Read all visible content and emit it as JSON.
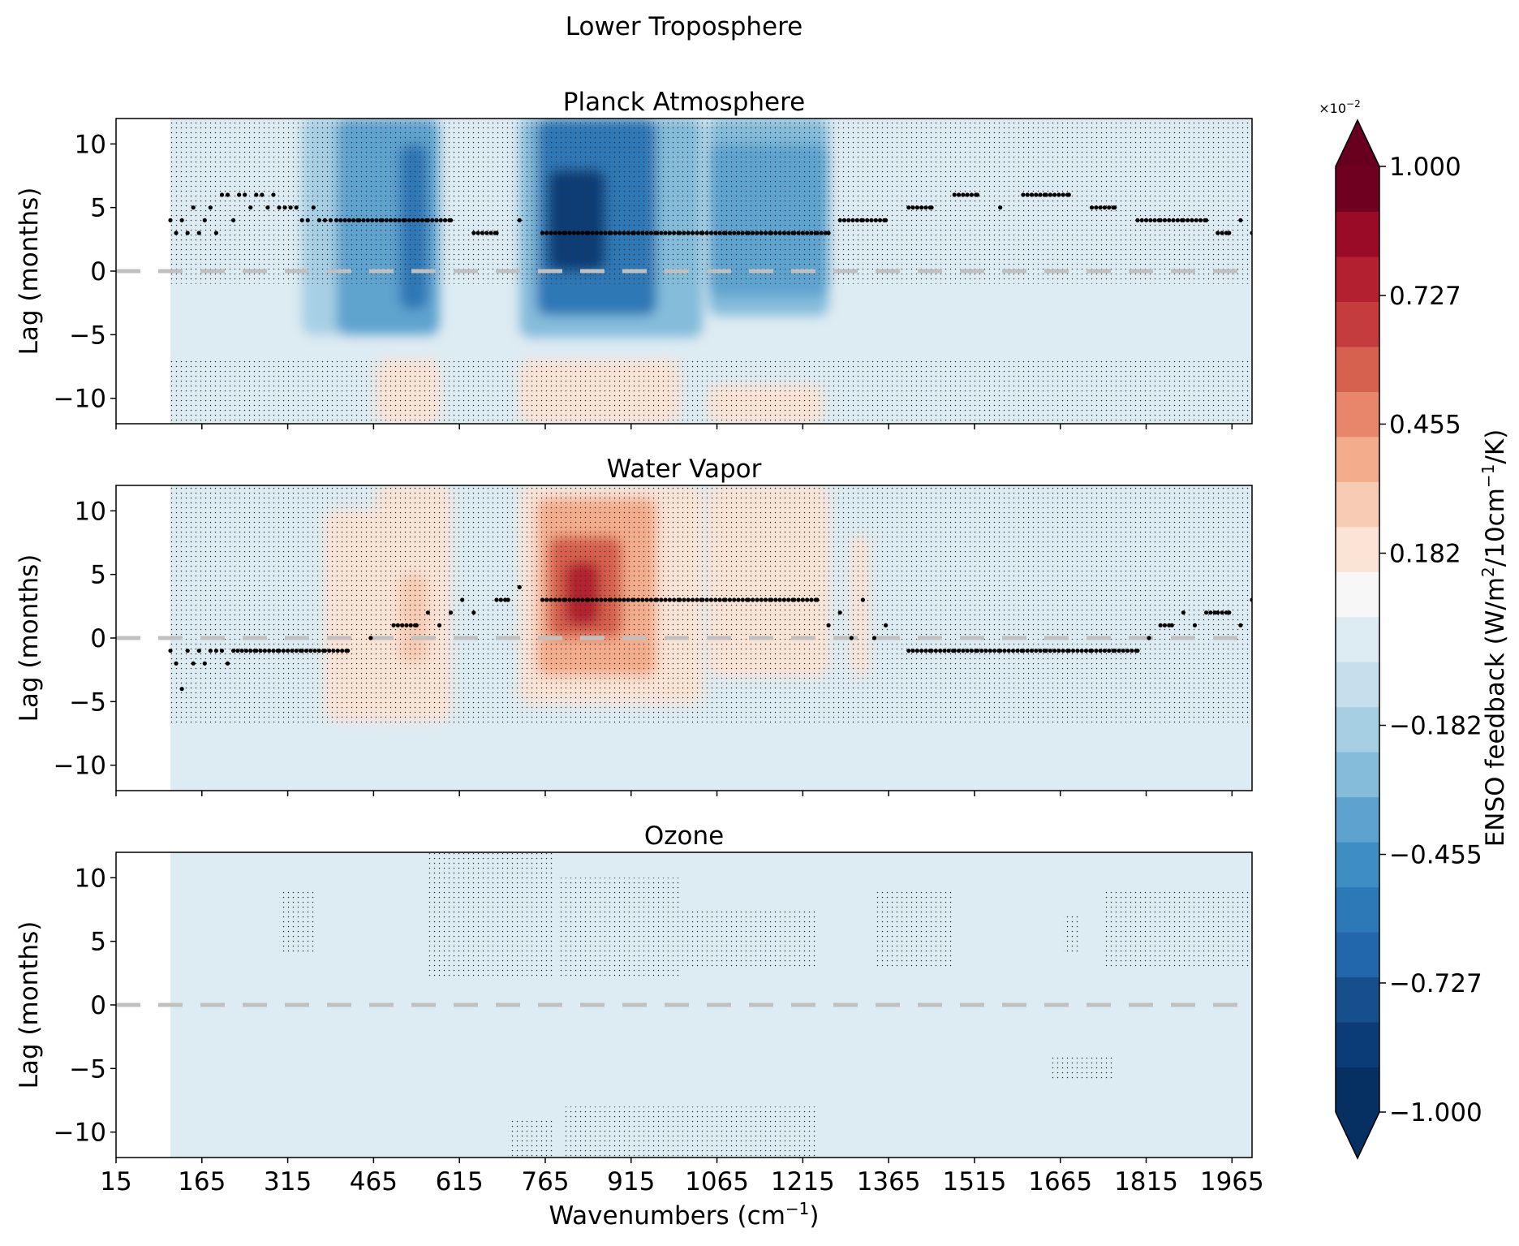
{
  "figure": {
    "suptitle": "Lower Troposphere",
    "xlabel_main": "Wavenumbers (cm",
    "xlabel_sup": "−1",
    "xlabel_end": ")",
    "ylabel": "Lag (months)"
  },
  "colorbar": {
    "label_main": "ENSO feedback (W/m",
    "label_sup1": "2",
    "label_mid": "/10cm",
    "label_sup2": "−1",
    "label_end": "/K)",
    "offset_base": "×10",
    "offset_exp": "−2",
    "ticks": [
      "1.000",
      "0.727",
      "0.455",
      "0.182",
      "−0.182",
      "−0.455",
      "−0.727",
      "−1.000"
    ],
    "tick_values": [
      1.0,
      0.727,
      0.455,
      0.182,
      -0.182,
      -0.455,
      -0.727,
      -1.0
    ],
    "colors": [
      "#053061",
      "#0c3c77",
      "#164f8b",
      "#2266ac",
      "#2d78b6",
      "#3e8ec3",
      "#5ea3cf",
      "#84bcda",
      "#a7cfe4",
      "#c6dfed",
      "#ddebf2",
      "#f7f7f7",
      "#fbe3d6",
      "#f8cbb4",
      "#f4ad8c",
      "#e7866a",
      "#d6614e",
      "#c43c3c",
      "#b3202f",
      "#990b27",
      "#6f0020"
    ],
    "under_color": "#053061",
    "over_color": "#67001f"
  },
  "chart_data": [
    {
      "type": "heatmap",
      "title": "Planck Atmosphere",
      "xlim": [
        15,
        2000
      ],
      "ylim": [
        -12,
        12
      ],
      "xticks": [
        15,
        165,
        315,
        465,
        615,
        765,
        915,
        1065,
        1215,
        1365,
        1515,
        1665,
        1815,
        1965
      ],
      "yticks": [
        10,
        5,
        0,
        -5,
        -10
      ],
      "ytick_labels": [
        "10",
        "5",
        "0",
        "−5",
        "−10"
      ],
      "zero_line": 0,
      "data_start_x": 110,
      "features": [
        {
          "x": [
            340,
            420
          ],
          "y": [
            -5,
            12
          ],
          "value": -0.2
        },
        {
          "x": [
            400,
            580
          ],
          "y": [
            -5,
            12
          ],
          "value": -0.35
        },
        {
          "x": [
            510,
            560
          ],
          "y": [
            -3,
            10
          ],
          "value": -0.6
        },
        {
          "x": [
            720,
            1040
          ],
          "y": [
            -5.2,
            12
          ],
          "value": -0.3
        },
        {
          "x": [
            750,
            960
          ],
          "y": [
            -3.5,
            12
          ],
          "value": -0.55
        },
        {
          "x": [
            770,
            870
          ],
          "y": [
            0,
            8
          ],
          "value": -0.85
        },
        {
          "x": [
            1050,
            1260
          ],
          "y": [
            -3.5,
            12
          ],
          "value": -0.3
        },
        {
          "x": [
            1050,
            1260
          ],
          "y": [
            -2,
            10
          ],
          "value": -0.4
        },
        {
          "x": [
            470,
            580
          ],
          "y": [
            -12,
            -7
          ],
          "value": 0.15
        },
        {
          "x": [
            720,
            1000
          ],
          "y": [
            -12,
            -7
          ],
          "value": 0.15
        },
        {
          "x": [
            750,
            950
          ],
          "y": [
            -12,
            -8.5
          ],
          "value": 0.22
        },
        {
          "x": [
            1050,
            1250
          ],
          "y": [
            -12,
            -9
          ],
          "value": 0.15
        }
      ],
      "significance": {
        "x_range": [
          110,
          2000
        ],
        "full_regions": [
          {
            "y": [
              -1,
              12
            ]
          }
        ],
        "tail_regions": [
          {
            "x": [
              110,
              2000
            ],
            "y": [
              -12,
              -7
            ]
          }
        ]
      },
      "lag_of_max": {
        "x": [
          110,
          120,
          130,
          140,
          150,
          160,
          170,
          180,
          190,
          200,
          210,
          220,
          230,
          240,
          250,
          260,
          270,
          280,
          290,
          300,
          310,
          320,
          330,
          340,
          350,
          360,
          370,
          380,
          390,
          400,
          440,
          480,
          520,
          560,
          600,
          640,
          680,
          720,
          760,
          800,
          840,
          880,
          920,
          960,
          1000,
          1040,
          1080,
          1120,
          1160,
          1200,
          1240,
          1260,
          1280,
          1320,
          1360,
          1400,
          1440,
          1480,
          1520,
          1560,
          1600,
          1640,
          1680,
          1720,
          1760,
          1800,
          1840,
          1880,
          1920,
          1940,
          1960,
          1980,
          2000
        ],
        "y": [
          4,
          3,
          4,
          3,
          5,
          3,
          4,
          5,
          3,
          6,
          6,
          4,
          6,
          6,
          5,
          6,
          6,
          5,
          6,
          5,
          5,
          5,
          5,
          4,
          4,
          5,
          4,
          4,
          4,
          4,
          4,
          4,
          4,
          4,
          4,
          3,
          3,
          4,
          3,
          3,
          3,
          3,
          3,
          3,
          3,
          3,
          3,
          3,
          3,
          3,
          3,
          3,
          4,
          4,
          4,
          5,
          5,
          6,
          6,
          5,
          6,
          6,
          6,
          5,
          5,
          4,
          4,
          4,
          4,
          3,
          3,
          4,
          3
        ]
      }
    },
    {
      "type": "heatmap",
      "title": "Water Vapor",
      "xlim": [
        15,
        2000
      ],
      "ylim": [
        -12,
        12
      ],
      "xticks": [
        15,
        165,
        315,
        465,
        615,
        765,
        915,
        1065,
        1215,
        1365,
        1515,
        1665,
        1815,
        1965
      ],
      "yticks": [
        10,
        5,
        0,
        -5,
        -10
      ],
      "ytick_labels": [
        "10",
        "5",
        "0",
        "−5",
        "−10"
      ],
      "zero_line": 0,
      "data_start_x": 110,
      "features": [
        {
          "x": [
            380,
            600
          ],
          "y": [
            -6.5,
            10
          ],
          "value": 0.15
        },
        {
          "x": [
            470,
            600
          ],
          "y": [
            -6.5,
            12
          ],
          "value": 0.2
        },
        {
          "x": [
            510,
            560
          ],
          "y": [
            -2,
            5
          ],
          "value": 0.3
        },
        {
          "x": [
            720,
            1040
          ],
          "y": [
            -5.2,
            12
          ],
          "value": 0.22
        },
        {
          "x": [
            750,
            960
          ],
          "y": [
            -3,
            11
          ],
          "value": 0.4
        },
        {
          "x": [
            770,
            900
          ],
          "y": [
            0,
            8
          ],
          "value": 0.6
        },
        {
          "x": [
            800,
            860
          ],
          "y": [
            1,
            6
          ],
          "value": 0.75
        },
        {
          "x": [
            1050,
            1260
          ],
          "y": [
            -3,
            12
          ],
          "value": 0.2
        },
        {
          "x": [
            1300,
            1330
          ],
          "y": [
            -3,
            8
          ],
          "value": 0.15
        }
      ],
      "significance": {
        "x_range": [
          110,
          2000
        ],
        "full_regions": [
          {
            "y": [
              -6.8,
              12
            ]
          }
        ],
        "tail_regions": []
      },
      "lag_of_max": {
        "x": [
          110,
          120,
          130,
          140,
          150,
          160,
          170,
          180,
          190,
          200,
          210,
          220,
          260,
          300,
          340,
          380,
          420,
          460,
          500,
          540,
          560,
          580,
          600,
          620,
          640,
          680,
          700,
          720,
          760,
          800,
          840,
          880,
          920,
          960,
          1000,
          1040,
          1080,
          1120,
          1160,
          1200,
          1240,
          1260,
          1280,
          1300,
          1320,
          1340,
          1360,
          1400,
          1440,
          1480,
          1520,
          1560,
          1600,
          1640,
          1680,
          1720,
          1760,
          1800,
          1820,
          1840,
          1860,
          1880,
          1900,
          1920,
          1940,
          1960,
          1980,
          2000
        ],
        "y": [
          -1,
          -2,
          -4,
          -1,
          -2,
          -1,
          -2,
          -1,
          -1,
          -1,
          -2,
          -1,
          -1,
          -1,
          -1,
          -1,
          -1,
          0,
          1,
          1,
          2,
          1,
          2,
          3,
          2,
          3,
          3,
          4,
          3,
          3,
          3,
          3,
          3,
          3,
          3,
          3,
          3,
          3,
          3,
          3,
          3,
          1,
          2,
          0,
          3,
          0,
          1,
          -1,
          -1,
          -1,
          -1,
          -1,
          -1,
          -1,
          -1,
          -1,
          -1,
          -1,
          0,
          1,
          1,
          2,
          1,
          2,
          2,
          2,
          1,
          3
        ]
      }
    },
    {
      "type": "heatmap",
      "title": "Ozone",
      "xlim": [
        15,
        2000
      ],
      "ylim": [
        -12,
        12
      ],
      "xticks": [
        15,
        165,
        315,
        465,
        615,
        765,
        915,
        1065,
        1215,
        1365,
        1515,
        1665,
        1815,
        1965
      ],
      "yticks": [
        10,
        5,
        0,
        -5,
        -10
      ],
      "ytick_labels": [
        "10",
        "5",
        "0",
        "−5",
        "−10"
      ],
      "zero_line": 0,
      "data_start_x": 110,
      "features": [],
      "significance": {
        "x_range": [
          110,
          2000
        ],
        "full_regions": [],
        "tail_regions": [
          {
            "x": [
              300,
              365
            ],
            "y": [
              4,
              9
            ]
          },
          {
            "x": [
              560,
              780
            ],
            "y": [
              2,
              12
            ]
          },
          {
            "x": [
              790,
              1000
            ],
            "y": [
              2,
              10
            ]
          },
          {
            "x": [
              1000,
              1240
            ],
            "y": [
              3,
              7.5
            ]
          },
          {
            "x": [
              1340,
              1480
            ],
            "y": [
              3,
              9
            ]
          },
          {
            "x": [
              1670,
              1700
            ],
            "y": [
              4,
              7
            ]
          },
          {
            "x": [
              1740,
              2000
            ],
            "y": [
              3,
              9
            ]
          },
          {
            "x": [
              1650,
              1760
            ],
            "y": [
              -6,
              -4
            ]
          },
          {
            "x": [
              700,
              780
            ],
            "y": [
              -12,
              -9
            ]
          },
          {
            "x": [
              800,
              1240
            ],
            "y": [
              -12,
              -8
            ]
          }
        ]
      },
      "lag_of_max": {
        "x": [],
        "y": []
      }
    }
  ]
}
